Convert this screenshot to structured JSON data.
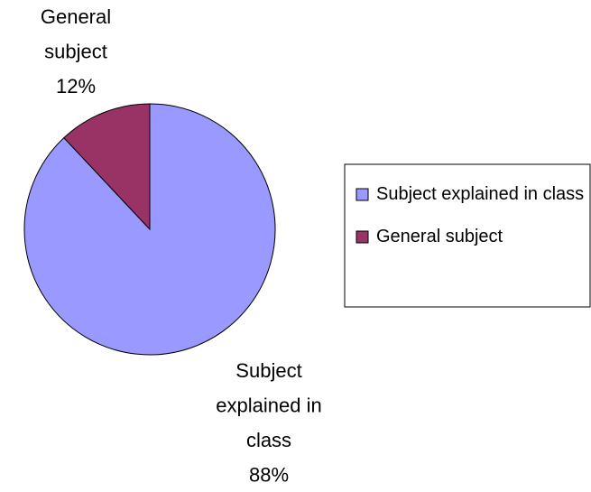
{
  "chart_data": {
    "type": "pie",
    "categories": [
      "Subject explained in class",
      "General subject"
    ],
    "values": [
      88,
      12
    ],
    "value_labels": [
      "88%",
      "12%"
    ],
    "colors": [
      "#9999ff",
      "#993366"
    ],
    "legend": "right"
  }
}
